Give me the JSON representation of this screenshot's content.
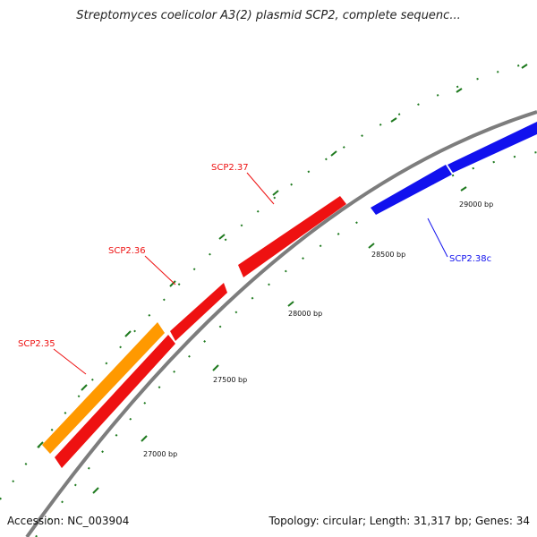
{
  "title": "Streptomyces coelicolor A3(2) plasmid SCP2, complete sequenc...",
  "footer": {
    "accession": "Accession: NC_003904",
    "summary": "Topology: circular; Length: 31,317 bp; Genes: 34"
  },
  "colors": {
    "backbone": "#8a8a8a",
    "tick": "#1f7a1f",
    "gene_red": "#ee1111",
    "gene_orange": "#ff9900",
    "gene_blue": "#1111ee"
  },
  "position_labels": [
    "27000 bp",
    "27500 bp",
    "28000 bp",
    "28500 bp",
    "29000 bp"
  ],
  "genes": [
    {
      "label": "SCP2.35",
      "color": "#ee1111"
    },
    {
      "label": "SCP2.36",
      "color": "#ee1111"
    },
    {
      "label": "SCP2.37",
      "color": "#ee1111"
    },
    {
      "label": "SCP2.38c",
      "color": "#1111ee"
    }
  ]
}
